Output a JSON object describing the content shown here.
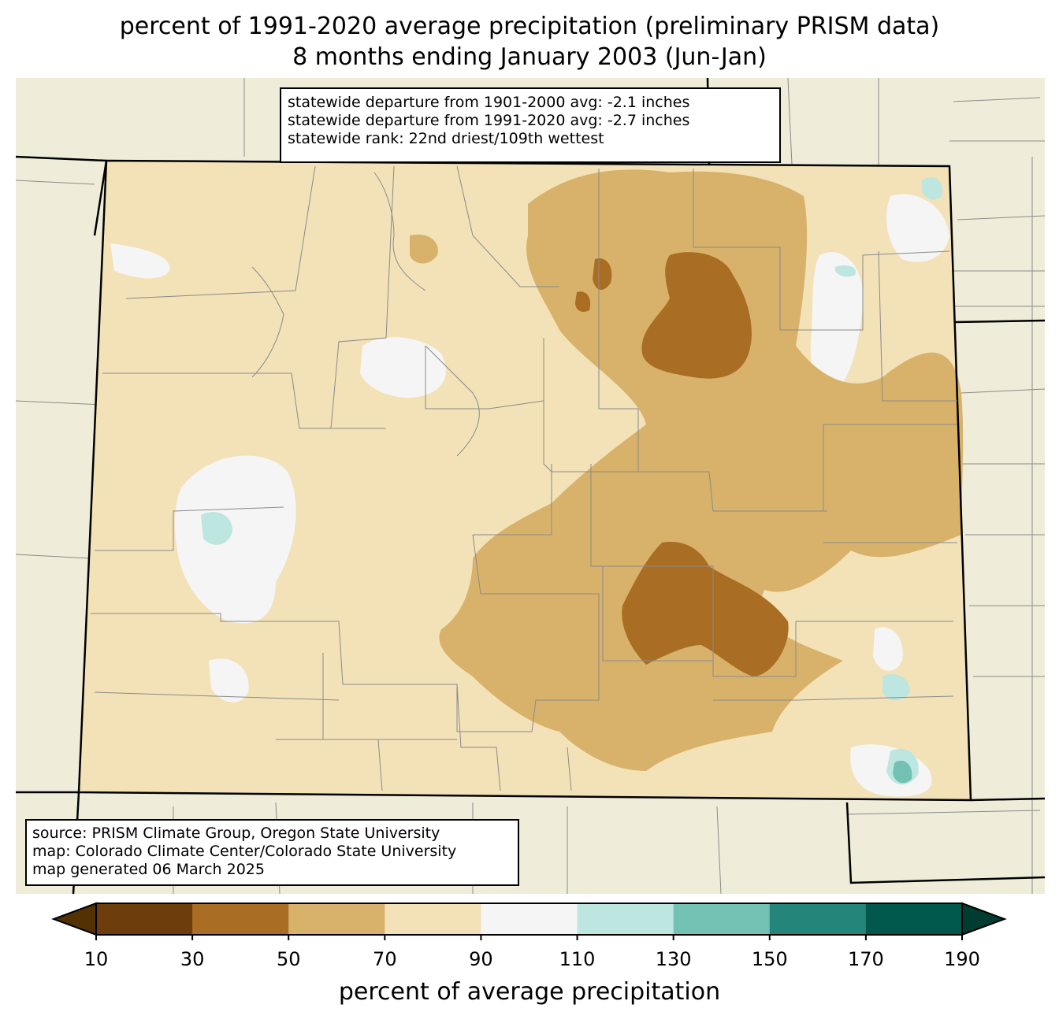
{
  "title": {
    "line1": "percent of 1991-2020 average precipitation (preliminary PRISM data)",
    "line2": "8 months ending January 2003 (Jun-Jan)"
  },
  "stats": {
    "line1": "statewide departure from 1901-2000 avg: -2.1 inches",
    "line2": "statewide departure from 1991-2020 avg: -2.7 inches",
    "line3": "statewide rank: 22nd driest/109th wettest"
  },
  "source": {
    "line1": "source: PRISM Climate Group, Oregon State University",
    "line2": "map: Colorado Climate Center/Colorado State University",
    "line3": "map generated 06 March 2025"
  },
  "legend": {
    "label": "percent of average precipitation",
    "ticks": [
      "10",
      "30",
      "50",
      "70",
      "90",
      "110",
      "130",
      "150",
      "170",
      "190"
    ],
    "colors": [
      "#6d3e0c",
      "#a96d24",
      "#d8b26a",
      "#f3e2b8",
      "#f4f5f4",
      "#bde6e0",
      "#72c1b3",
      "#24857b",
      "#00574c"
    ],
    "under_color": "#543005",
    "over_color": "#003c30"
  },
  "map": {
    "background_color": "#efedd9",
    "state_fill": "#f3e2b8"
  }
}
